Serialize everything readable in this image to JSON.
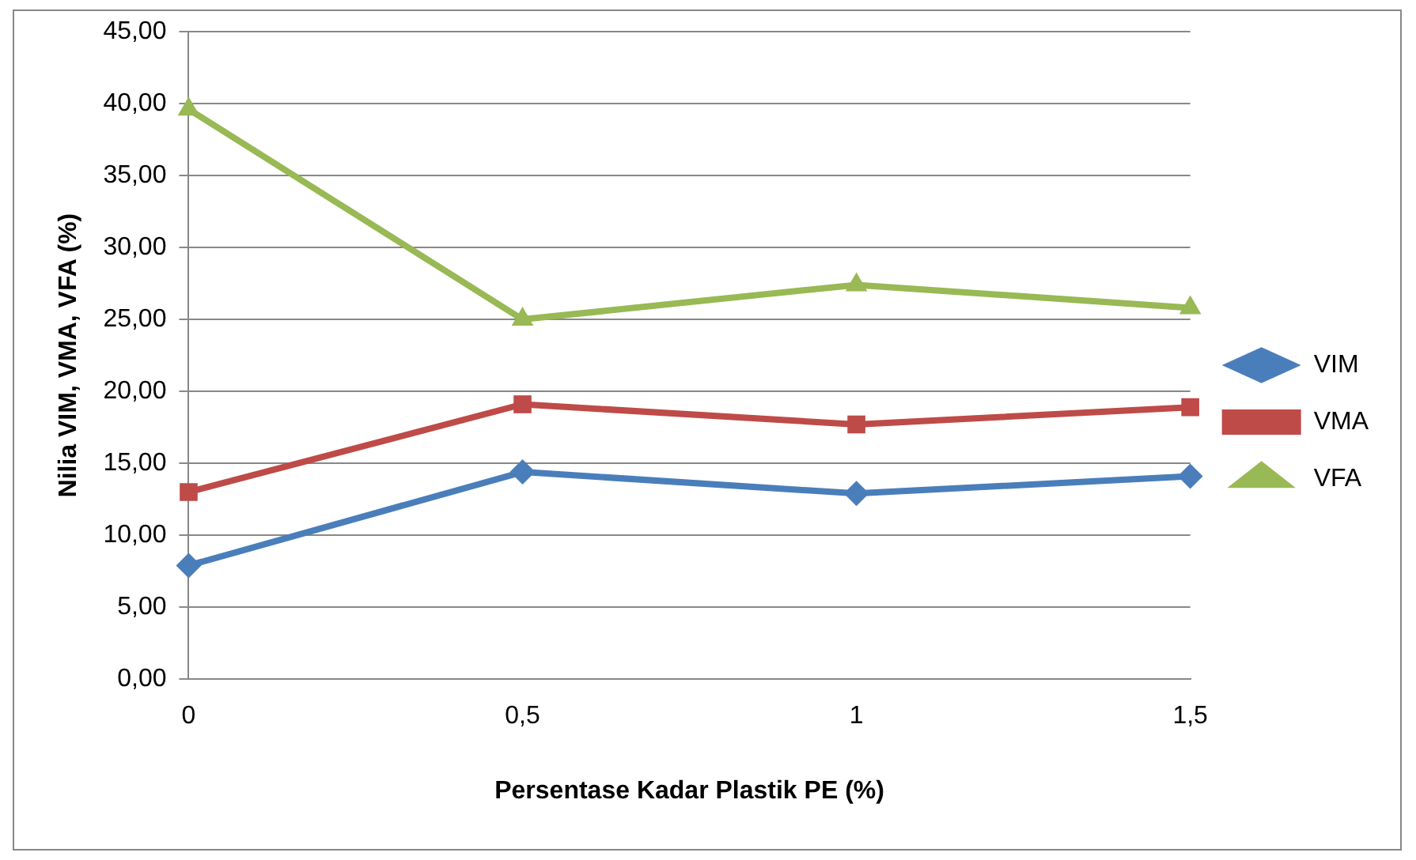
{
  "chart_data": {
    "type": "line",
    "xlabel": "Persentase Kadar Plastik PE (%)",
    "ylabel": "Nilia VIM, VMA, VFA (%)",
    "categories": [
      "0",
      "0,5",
      "1",
      "1,5"
    ],
    "series": [
      {
        "name": "VIM",
        "color": "#4a7ebb",
        "marker": "diamond",
        "values": [
          7.9,
          14.4,
          12.9,
          14.1
        ]
      },
      {
        "name": "VMA",
        "color": "#be4b48",
        "marker": "square",
        "values": [
          13.0,
          19.1,
          17.7,
          18.9
        ]
      },
      {
        "name": "VFA",
        "color": "#98b954",
        "marker": "triangle",
        "values": [
          39.6,
          25.0,
          27.4,
          25.8
        ]
      }
    ],
    "ylim": [
      0,
      45
    ],
    "yticks": [
      {
        "value": 0,
        "label": "0,00"
      },
      {
        "value": 5,
        "label": "5,00"
      },
      {
        "value": 10,
        "label": "10,00"
      },
      {
        "value": 15,
        "label": "15,00"
      },
      {
        "value": 20,
        "label": "20,00"
      },
      {
        "value": 25,
        "label": "25,00"
      },
      {
        "value": 30,
        "label": "30,00"
      },
      {
        "value": 35,
        "label": "35,00"
      },
      {
        "value": 40,
        "label": "40,00"
      },
      {
        "value": 45,
        "label": "45,00"
      }
    ],
    "grid": "y",
    "legend": "right",
    "line_style": "solid"
  }
}
